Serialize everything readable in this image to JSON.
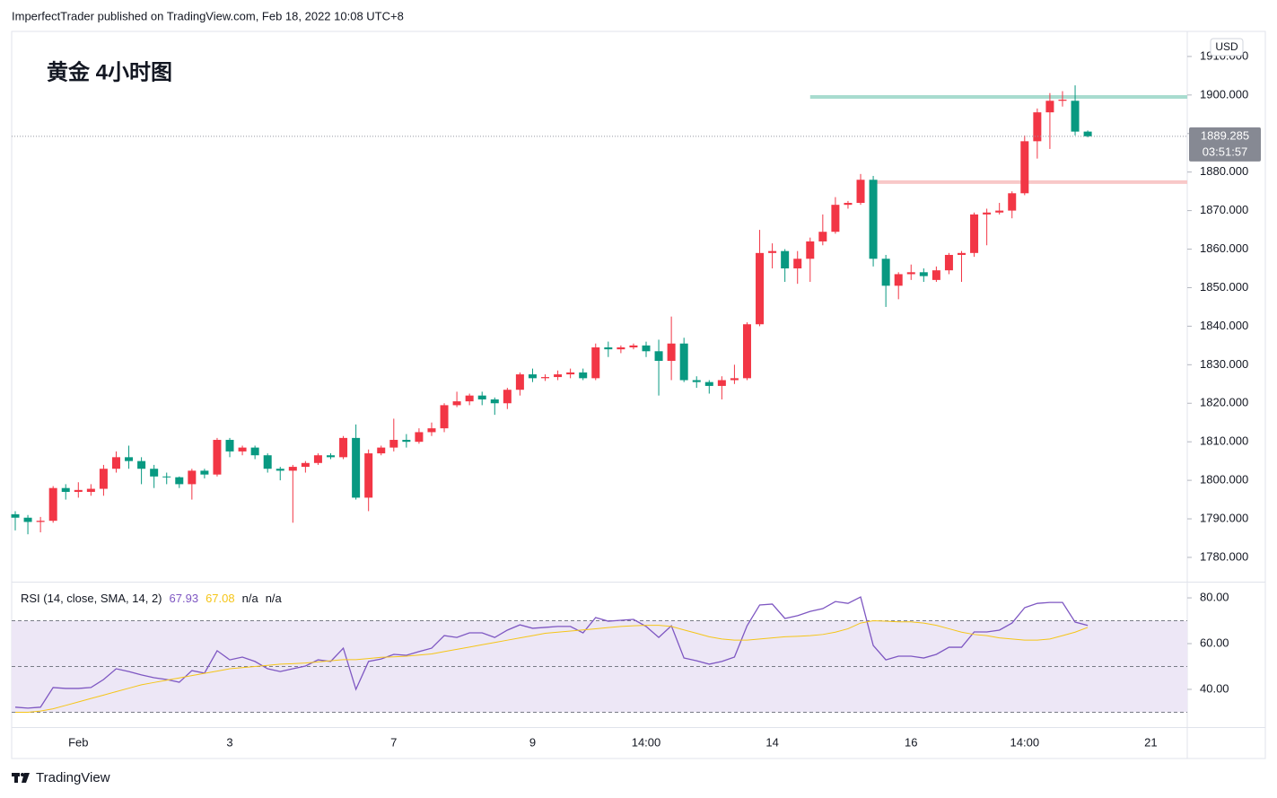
{
  "header": "ImperfectTrader published on TradingView.com, Feb 18, 2022 10:08 UTC+8",
  "footer": "TradingView",
  "chart_data": [
    {
      "type": "candlestick",
      "title": "黄金 4小时图",
      "currency": "USD",
      "countdown": "03:51:57",
      "up_color": "#f23645",
      "down_color": "#089981",
      "categories": [
        null,
        null,
        null,
        null,
        null,
        "Feb",
        null,
        null,
        null,
        null,
        null,
        null,
        null,
        null,
        null,
        null,
        null,
        "3",
        null,
        null,
        null,
        null,
        null,
        null,
        null,
        null,
        null,
        null,
        null,
        null,
        "7",
        null,
        null,
        null,
        null,
        null,
        null,
        null,
        null,
        null,
        null,
        "9",
        null,
        null,
        null,
        null,
        null,
        null,
        null,
        null,
        "14:00",
        null,
        null,
        null,
        null,
        null,
        null,
        null,
        null,
        null,
        "14",
        null,
        null,
        null,
        null,
        null,
        null,
        null,
        null,
        null,
        null,
        "16",
        null,
        null,
        null,
        null,
        null,
        null,
        null,
        null,
        "14:00",
        null,
        null,
        null,
        null,
        null,
        null,
        null,
        null,
        null,
        "21"
      ],
      "open": [
        1791.2,
        1790.3,
        1789.2,
        1789.5,
        1798,
        1797,
        1797,
        1797.8,
        1803,
        1806,
        1805,
        1803,
        1801,
        1800.8,
        1799,
        1802.5,
        1801.5,
        1810.5,
        1807.5,
        1808.5,
        1806.5,
        1803,
        1802.5,
        1803.5,
        1804.5,
        1806.5,
        1806,
        1811,
        1795.5,
        1807,
        1808.5,
        1810.5,
        1810,
        1812.5,
        1813.5,
        1819.5,
        1820.5,
        1822,
        1821,
        1820,
        1823.5,
        1827.5,
        1826.5,
        1826.8,
        1827.5,
        1828,
        1826.5,
        1834.5,
        1834,
        1834.5,
        1835,
        1833.5,
        1831,
        1835.5,
        1826,
        1825.5,
        1824.5,
        1826,
        1826.5,
        1840.5,
        1859,
        1859.5,
        1855,
        1857.5,
        1862,
        1864.5,
        1871.5,
        1872,
        1878,
        1857.5,
        1850.5,
        1853.5,
        1854,
        1852,
        1854.5,
        1858.5,
        1859,
        1869,
        1869.5,
        1870,
        1874.5,
        1888,
        1895.5,
        1898.5,
        1898.5,
        1890.5,
        null,
        null,
        null,
        null,
        null
      ],
      "high": [
        1792,
        1791,
        1790.5,
        1798.5,
        1799,
        1799.5,
        1799,
        1804,
        1807.5,
        1809,
        1806,
        1804,
        1802,
        1801,
        1803,
        1803,
        1811,
        1811,
        1809,
        1809,
        1807,
        1803.5,
        1804,
        1805,
        1807,
        1807,
        1811.5,
        1814.5,
        1808,
        1809,
        1816,
        1812,
        1813.5,
        1815,
        1820,
        1823,
        1822.5,
        1823,
        1821.5,
        1824,
        1828,
        1829,
        1827.5,
        1828.5,
        1829,
        1829,
        1835.5,
        1836,
        1835,
        1835.5,
        1836,
        1836.5,
        1842.5,
        1837,
        1827,
        1826,
        1827,
        1830,
        1841,
        1865,
        1861.5,
        1860,
        1859.5,
        1863,
        1869,
        1873.5,
        1872.5,
        1879.5,
        1879,
        1858.5,
        1854,
        1856,
        1855,
        1855.5,
        1859,
        1859.5,
        1869.5,
        1870.5,
        1872,
        1875,
        1889.5,
        1896.5,
        1900.5,
        1901,
        1902.5,
        1890.8,
        null,
        null,
        null,
        null,
        null
      ],
      "low": [
        1787,
        1786,
        1786.5,
        1789,
        1795,
        1795.5,
        1796,
        1796,
        1802,
        1803,
        1799,
        1798,
        1799,
        1798,
        1795,
        1800.5,
        1801,
        1806,
        1806.5,
        1805.5,
        1802,
        1800,
        1789,
        1802,
        1804,
        1805.5,
        1805.5,
        1795,
        1792,
        1806.5,
        1807.5,
        1808.5,
        1809.5,
        1811.5,
        1812.5,
        1819,
        1819.5,
        1819.5,
        1817,
        1818.5,
        1822,
        1825.5,
        1825.8,
        1826,
        1826.5,
        1826,
        1826,
        1832,
        1833,
        1834,
        1832,
        1822,
        1826,
        1825.5,
        1824,
        1822.5,
        1821,
        1825,
        1826,
        1840,
        1855,
        1851.5,
        1851,
        1851.5,
        1861,
        1864,
        1870.5,
        1871.5,
        1855.5,
        1845,
        1847,
        1852,
        1851.5,
        1851.5,
        1853.5,
        1851.5,
        1858,
        1861,
        1869,
        1868,
        1874,
        1883.5,
        1886,
        1897,
        1889.5,
        1889,
        null,
        null,
        null,
        null,
        null
      ],
      "close": [
        1790.3,
        1789.2,
        1789.5,
        1798,
        1797,
        1797.5,
        1797.8,
        1803,
        1806,
        1805,
        1803,
        1801,
        1800.8,
        1799,
        1802.5,
        1801.5,
        1810.5,
        1807.5,
        1808.5,
        1806.5,
        1803,
        1802.5,
        1803.5,
        1804.5,
        1806.5,
        1806,
        1811,
        1795.5,
        1807,
        1808.5,
        1810.5,
        1810,
        1812.5,
        1813.5,
        1819.5,
        1820.5,
        1822,
        1821,
        1820,
        1823.5,
        1827.5,
        1826.5,
        1826.8,
        1827.5,
        1828,
        1826.5,
        1834.5,
        1834,
        1834.5,
        1835,
        1833.5,
        1831,
        1835.5,
        1826,
        1825.5,
        1824.5,
        1826,
        1826.5,
        1840.5,
        1859,
        1859.5,
        1855,
        1857.5,
        1862,
        1864.5,
        1871.5,
        1872,
        1878,
        1857.5,
        1850.5,
        1853.5,
        1854,
        1853,
        1854.5,
        1858.5,
        1859,
        1869,
        1869.5,
        1870,
        1874.5,
        1888,
        1895.5,
        1898.5,
        1898.8,
        1890.5,
        1889.285,
        null,
        null,
        null,
        null,
        null
      ],
      "levels": [
        {
          "value": 1899.5,
          "color": "#a8dccf",
          "start": 63
        },
        {
          "value": 1877.4,
          "color": "#f8c8c8",
          "start": 68
        }
      ],
      "ylim": [
        1773.7,
        1916.5
      ],
      "yticks": [
        {
          "value": 1780,
          "label": "1780.000"
        },
        {
          "value": 1790,
          "label": "1790.000"
        },
        {
          "value": 1800,
          "label": "1800.000"
        },
        {
          "value": 1810,
          "label": "1810.000"
        },
        {
          "value": 1820,
          "label": "1820.000"
        },
        {
          "value": 1830,
          "label": "1830.000"
        },
        {
          "value": 1840,
          "label": "1840.000"
        },
        {
          "value": 1850,
          "label": "1850.000"
        },
        {
          "value": 1860,
          "label": "1860.000"
        },
        {
          "value": 1870,
          "label": "1870.000"
        },
        {
          "value": 1880,
          "label": "1880.000"
        },
        {
          "value": 1890,
          "label": "1890.000"
        },
        {
          "value": 1900,
          "label": "1900.000"
        },
        {
          "value": 1910,
          "label": "1910.000"
        }
      ]
    },
    {
      "type": "line",
      "title": "RSI (14, close, SMA, 14, 2)",
      "na_labels": [
        "n/a",
        "n/a"
      ],
      "band": [
        30,
        70
      ],
      "band_color": "#ede7f6",
      "levels": [
        70,
        50,
        30
      ],
      "series": [
        {
          "color": "#7e57c2",
          "values": [
            32.2,
            31.8,
            32.2,
            40.8,
            40.4,
            40.4,
            40.8,
            44.3,
            49,
            47.8,
            46.3,
            45.1,
            44.3,
            43.1,
            48.2,
            47.1,
            56.9,
            52.9,
            54.1,
            52.2,
            49,
            47.8,
            49,
            50.2,
            52.9,
            52.2,
            58,
            40,
            52.2,
            53.3,
            55.3,
            54.9,
            56.5,
            58,
            63.5,
            62.7,
            64.7,
            64.7,
            62.7,
            65.9,
            68.2,
            66.7,
            67.1,
            67.5,
            67.5,
            64.7,
            71.4,
            69.8,
            70.2,
            70.6,
            67.5,
            62.7,
            67.8,
            53.7,
            52.5,
            51,
            52.2,
            54.1,
            67.8,
            76.9,
            77.3,
            71,
            72.2,
            74.1,
            75.3,
            78.4,
            77.6,
            80.4,
            59.2,
            52.9,
            54.5,
            54.5,
            53.7,
            55.3,
            58.4,
            58.4,
            65.1,
            65.1,
            65.9,
            69,
            75.7,
            77.6,
            78,
            78,
            69.4,
            67.93
          ]
        },
        {
          "color": "#f5c518",
          "values": [
            30,
            30,
            30.5,
            31.5,
            33,
            34.5,
            36,
            37.5,
            39,
            40.5,
            42,
            43,
            44,
            45,
            46,
            47,
            48,
            49,
            49.5,
            50,
            50.5,
            51,
            51.2,
            51.5,
            52,
            52.5,
            53,
            53,
            53.5,
            54,
            54.2,
            54.5,
            55,
            55.5,
            56.5,
            57.5,
            58.5,
            59.5,
            60.5,
            61.5,
            62.5,
            63.5,
            64.5,
            65,
            65.5,
            66,
            66.5,
            67,
            67.5,
            67.8,
            68,
            68,
            67.5,
            66,
            64.5,
            63,
            62,
            61.5,
            61.5,
            62,
            62.5,
            63,
            63.2,
            63.5,
            64,
            65,
            66.5,
            69,
            70,
            69.8,
            69.5,
            69.5,
            69,
            68,
            66.5,
            65,
            64,
            63.5,
            62.5,
            62,
            61.5,
            61.5,
            62,
            63.5,
            65,
            67.08
          ]
        }
      ],
      "ylim": [
        23.5,
        86.3
      ],
      "yticks": [
        {
          "value": 40,
          "label": "40.00"
        },
        {
          "value": 60,
          "label": "60.00"
        },
        {
          "value": 80,
          "label": "80.00"
        }
      ]
    }
  ]
}
